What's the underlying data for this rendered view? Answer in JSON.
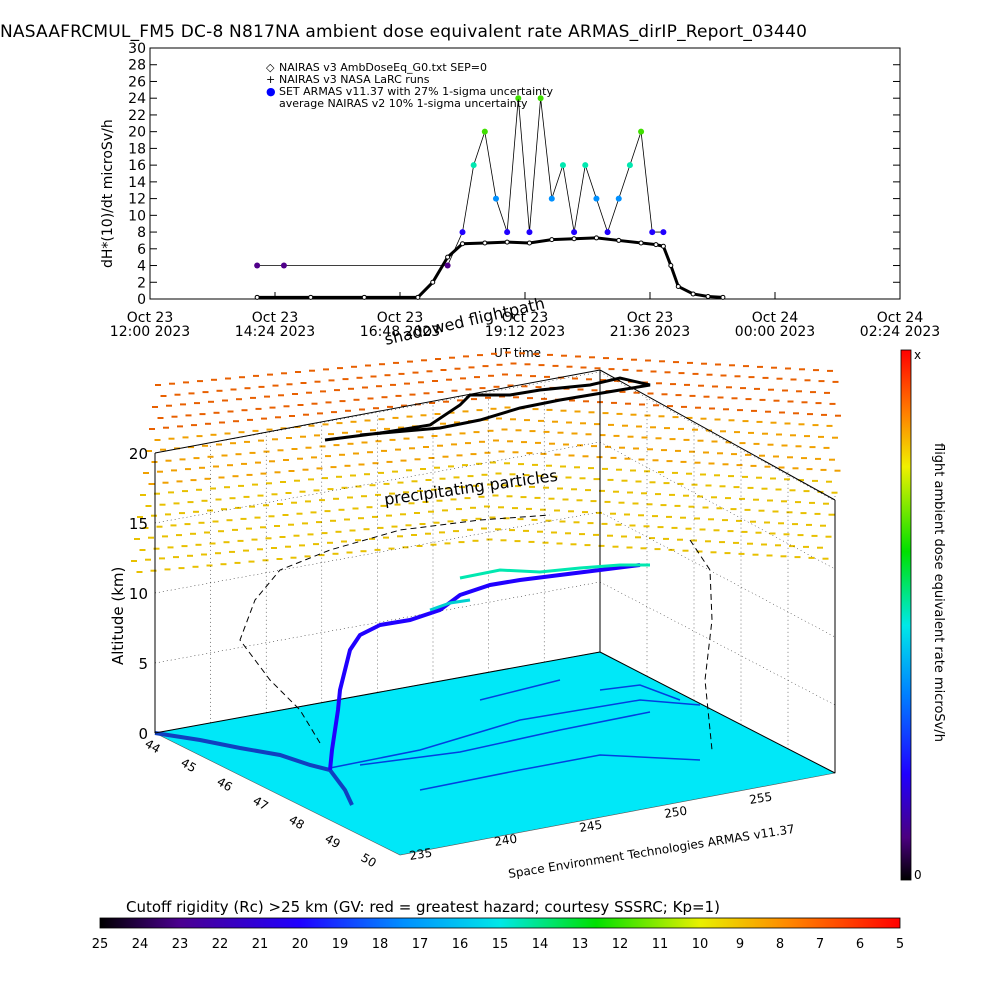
{
  "title": "NASAAFRCMUL_FM5 DC-8    N817NA ambient dose equivalent rate ARMAS_dirIP_Report_03440",
  "top_chart": {
    "ylabel": "dH*(10)/dt microSv/h",
    "xlabel": "UT time",
    "yticks": [
      "0",
      "2",
      "4",
      "6",
      "8",
      "10",
      "12",
      "14",
      "16",
      "18",
      "20",
      "22",
      "24",
      "26",
      "28",
      "30"
    ],
    "xticks": [
      {
        "l1": "Oct 23",
        "l2": "12:00 2023"
      },
      {
        "l1": "Oct 23",
        "l2": "14:24 2023"
      },
      {
        "l1": "Oct 23",
        "l2": "16:48 2023"
      },
      {
        "l1": "Oct 23",
        "l2": "19:12 2023"
      },
      {
        "l1": "Oct 23",
        "l2": "21:36 2023"
      },
      {
        "l1": "Oct 24",
        "l2": "00:00 2023"
      },
      {
        "l1": "Oct 24",
        "l2": "02:24 2023"
      }
    ],
    "legend": [
      {
        "symbol": "◇",
        "text": "NAIRAS v3 AmbDoseEq_G0.txt SEP=0"
      },
      {
        "symbol": "+",
        "text": "NAIRAS v3 NASA LaRC runs"
      },
      {
        "symbol": "●",
        "text": "SET ARMAS v11.37 with 27% 1-sigma uncertainty",
        "color": "#0000ff"
      },
      {
        "symbol": "",
        "text": "average NAIRAS v2 10% 1-sigma uncertainty"
      }
    ]
  },
  "chart_data": [
    {
      "type": "scatter",
      "title": "NASAAFRCMUL_FM5 DC-8    N817NA ambient dose equivalent rate ARMAS_dirIP_Report_03440",
      "xlabel": "UT time",
      "ylabel": "dH*(10)/dt microSv/h",
      "ylim": [
        0,
        30
      ],
      "xlim": [
        "2023-10-23 12:00",
        "2023-10-24 04:48"
      ],
      "series": [
        {
          "name": "NAIRAS v3 AmbDoseEq_G0.txt SEP=0",
          "x": [
            "14:24",
            "15:36",
            "16:48",
            "18:00",
            "18:20",
            "18:40",
            "19:00",
            "19:30",
            "20:00",
            "20:30",
            "21:00",
            "21:30",
            "22:00",
            "22:30",
            "23:00",
            "23:20",
            "23:30",
            "23:40",
            "23:50",
            "00:10",
            "00:30",
            "00:50"
          ],
          "y": [
            0.2,
            0.2,
            0.2,
            0.2,
            2,
            5,
            6.6,
            6.7,
            6.8,
            6.7,
            7.1,
            7.2,
            7.3,
            7.0,
            6.7,
            6.5,
            6.3,
            4,
            1.5,
            0.6,
            0.3,
            0.2
          ]
        },
        {
          "name": "SET ARMAS v11.37 with 27% 1-sigma uncertainty",
          "x": [
            "14:24",
            "15:00",
            "18:40",
            "19:00",
            "19:15",
            "19:30",
            "19:45",
            "20:00",
            "20:15",
            "20:30",
            "20:45",
            "21:00",
            "21:15",
            "21:30",
            "21:45",
            "22:00",
            "22:15",
            "22:30",
            "22:45",
            "23:00",
            "23:15",
            "23:30"
          ],
          "y": [
            4,
            4,
            4,
            8,
            16,
            20,
            12,
            8,
            24,
            8,
            24,
            12,
            16,
            8,
            16,
            12,
            8,
            12,
            16,
            20,
            8,
            8
          ]
        }
      ]
    },
    {
      "type": "scatter",
      "title": "shadowed flightpath",
      "xlabel": "Space Environment Technologies ARMAS v11.37",
      "ylabel": "Altitude (km)",
      "zlim": [
        0,
        20
      ],
      "annotations": [
        "precipitating particles",
        "shadowed flightpath"
      ],
      "longitude_ticks": [
        "235",
        "240",
        "245",
        "250",
        "255"
      ],
      "latitude_ticks": [
        "44",
        "45",
        "46",
        "47",
        "48",
        "49",
        "50"
      ]
    }
  ],
  "bottom_chart": {
    "ylabel": "Altitude (km)",
    "zticks": [
      "0",
      "5",
      "10",
      "15",
      "20"
    ],
    "lon_ticks": [
      "235",
      "240",
      "245",
      "250",
      "255"
    ],
    "lat_ticks": [
      "44",
      "45",
      "46",
      "47",
      "48",
      "49",
      "50"
    ],
    "annotation_particles": "precipitating particles",
    "annotation_shadow": "shadowed flightpath",
    "credit": "Space Environment Technologies ARMAS v11.37"
  },
  "right_colorbar": {
    "label": "flight ambient dose equivalent rate microSv/h",
    "top": "x",
    "bottom": "0"
  },
  "bottom_colorbar": {
    "title": "Cutoff rigidity (Rc) >25 km (GV: red = greatest hazard; courtesy SSSRC; Kp=1)",
    "ticks": [
      "25",
      "24",
      "23",
      "22",
      "21",
      "20",
      "19",
      "18",
      "17",
      "16",
      "15",
      "14",
      "13",
      "12",
      "11",
      "10",
      "9",
      "8",
      "7",
      "6",
      "5"
    ]
  },
  "colors": {
    "cyan_ground": "#00e8f8",
    "orange_particles": "#e89000",
    "armas_blue": "#0000ff"
  }
}
